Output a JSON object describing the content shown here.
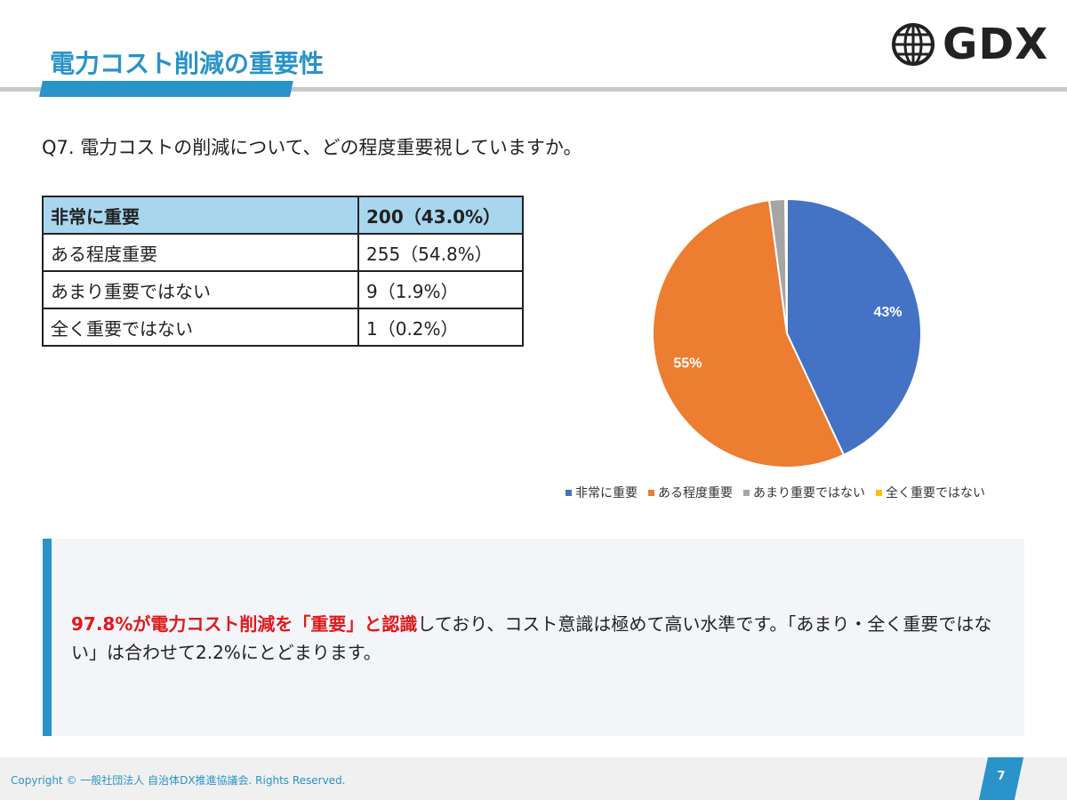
{
  "header": {
    "title": "電力コスト削減の重要性",
    "logo_text": "GDX"
  },
  "question": "Q7. 電力コストの削減について、どの程度重要視していますか。",
  "table": {
    "rows": [
      {
        "label": "非常に重要",
        "value": "200（43.0%）"
      },
      {
        "label": "ある程度重要",
        "value": "255（54.8%）"
      },
      {
        "label": "あまり重要ではない",
        "value": "9（1.9%）"
      },
      {
        "label": "全く重要ではない",
        "value": "1（0.2%）"
      }
    ]
  },
  "chart_data": {
    "type": "pie",
    "categories": [
      "非常に重要",
      "ある程度重要",
      "あまり重要ではない",
      "全く重要ではない"
    ],
    "values": [
      43.0,
      54.8,
      1.9,
      0.2
    ],
    "data_labels": [
      "43%",
      "55%",
      "",
      ""
    ],
    "colors": [
      "#4472c4",
      "#ed7d31",
      "#a5a5a5",
      "#ffc000"
    ],
    "legend_position": "bottom"
  },
  "summary": {
    "emphasis": "97.8%が電力コスト削減を「重要」と認識",
    "text": "しており、コスト意識は極めて高い水準です。「あまり・全く重要ではない」は合わせて2.2%にとどまります。"
  },
  "footer": {
    "copyright": "Copyright © 一般社団法人 自治体DX推進協議会. Rights Reserved.",
    "page_number": "7"
  },
  "colors": {
    "accent": "#2a93c9",
    "emphasis": "#e0191d",
    "table_header": "#a9d6ef"
  }
}
